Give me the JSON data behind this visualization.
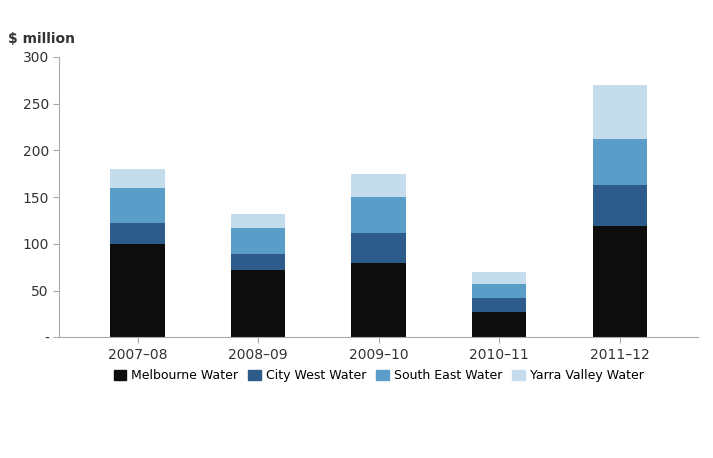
{
  "categories": [
    "2007–08",
    "2008–09",
    "2009–10",
    "2010–11",
    "2011–12"
  ],
  "series": {
    "Melbourne Water": [
      100,
      72,
      80,
      27,
      119
    ],
    "City West Water": [
      22,
      17,
      32,
      15,
      44
    ],
    "South East Water": [
      38,
      28,
      38,
      15,
      49
    ],
    "Yarra Valley Water": [
      20,
      15,
      25,
      13,
      58
    ]
  },
  "colors": {
    "Melbourne Water": "#0d0d0d",
    "City West Water": "#2e5c8a",
    "South East Water": "#5b9dc9",
    "Yarra Valley Water": "#c5dced"
  },
  "ylabel_text": "$ million",
  "ylim": [
    0,
    300
  ],
  "yticks": [
    0,
    50,
    100,
    150,
    200,
    250,
    300
  ],
  "ytick_labels": [
    "-",
    "50",
    "100",
    "150",
    "200",
    "250",
    "300"
  ],
  "background_color": "#ffffff",
  "bar_width": 0.45,
  "legend_order": [
    "Melbourne Water",
    "City West Water",
    "South East Water",
    "Yarra Valley Water"
  ],
  "spine_color": "#aaaaaa"
}
